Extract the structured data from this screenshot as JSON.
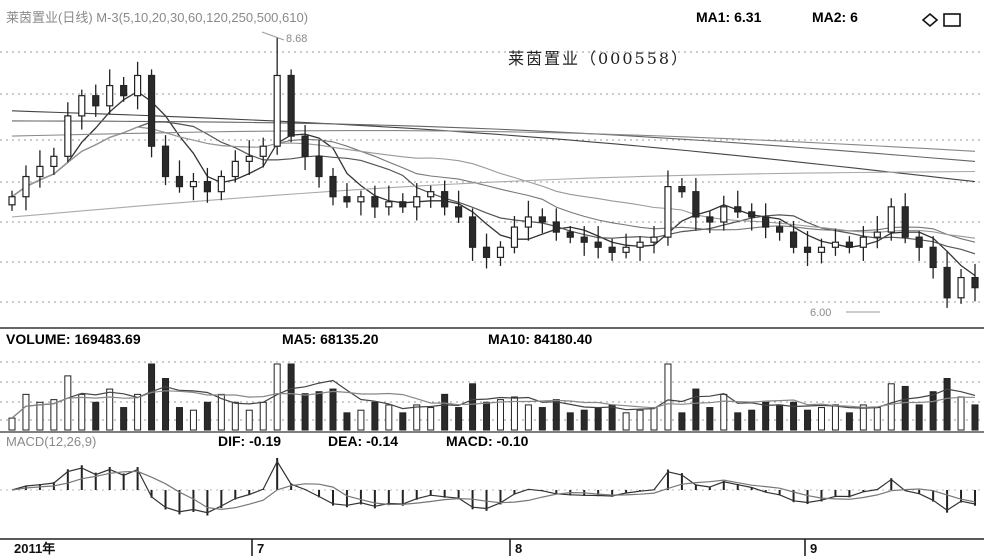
{
  "header": {
    "price_line_prefix": "莱茵置业(日线) M-3(5,10,20,30,60,120,250,500,610)",
    "ma1": "MA1: 6.31",
    "ma2": "MA2: 6",
    "icons": [
      "diamond-icon",
      "window-icon"
    ]
  },
  "volume_header": {
    "volume": "VOLUME: 169483.69",
    "ma5": "MA5: 68135.20",
    "ma10": "MA10: 84180.40"
  },
  "macd_header": {
    "prefix": "MACD(12,26,9)",
    "dif": "DIF: -0.19",
    "dea": "DEA: -0.14",
    "macd": "MACD: -0.10"
  },
  "chart_data": {
    "type": "candlestick",
    "title": "莱茵置业（000558）",
    "annotations": {
      "high": "8.68",
      "low": "6.00"
    },
    "x_tick_labels": [
      "2011年",
      "7",
      "8",
      "9"
    ],
    "price_series": [
      7.1,
      7.3,
      7.4,
      7.5,
      7.9,
      8.1,
      8.0,
      8.2,
      8.1,
      8.3,
      7.6,
      7.3,
      7.2,
      7.25,
      7.15,
      7.3,
      7.45,
      7.5,
      7.6,
      8.3,
      7.7,
      7.5,
      7.3,
      7.1,
      7.05,
      7.1,
      7.0,
      7.05,
      7.0,
      7.1,
      7.15,
      7.0,
      6.9,
      6.6,
      6.5,
      6.6,
      6.8,
      6.9,
      6.85,
      6.75,
      6.7,
      6.65,
      6.6,
      6.55,
      6.6,
      6.65,
      6.7,
      7.2,
      7.15,
      6.9,
      6.85,
      7.0,
      6.95,
      6.9,
      6.8,
      6.75,
      6.6,
      6.55,
      6.6,
      6.65,
      6.6,
      6.7,
      6.75,
      7.0,
      6.7,
      6.6,
      6.4,
      6.1,
      6.3,
      6.2
    ]
  }
}
